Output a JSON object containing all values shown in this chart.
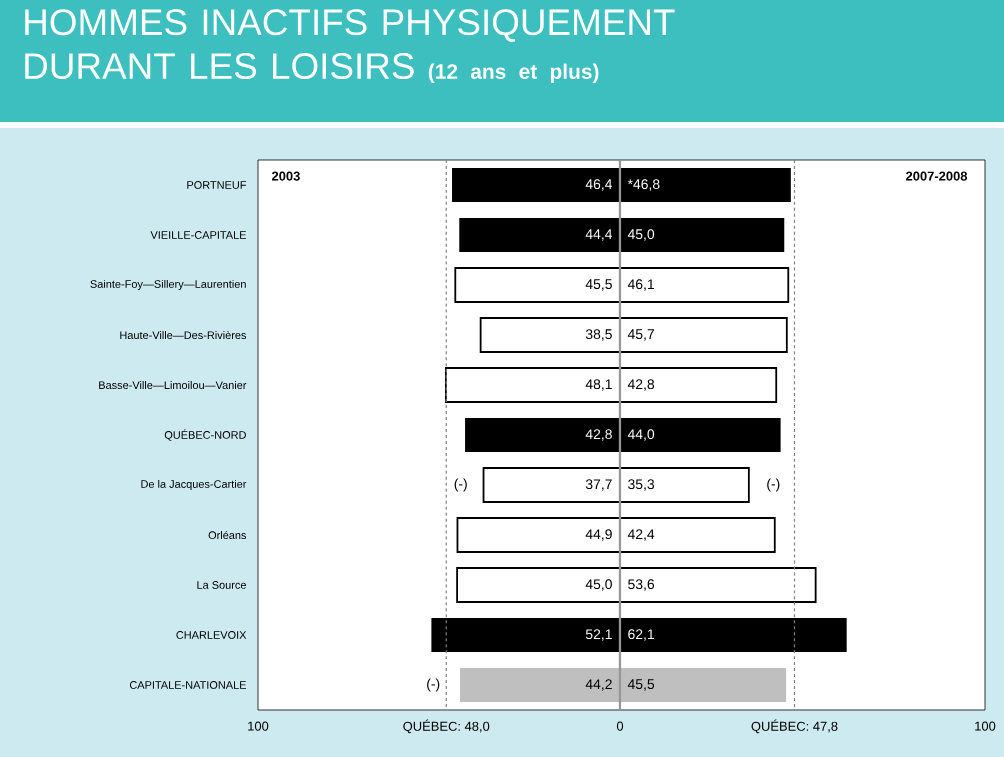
{
  "chart_data": [
    {
      "type": "other",
      "title": "HOMMES INACTIFS PHYSIQUEMENT DURANT LES LOISIRS",
      "subtitle": "(12 ans et plus)"
    },
    {
      "type": "bar",
      "orientation": "horizontal",
      "title": "2003",
      "categories": [
        "PORTNEUF",
        "VIEILLE-CAPITALE",
        "Sainte-Foy—Sillery—Laurentien",
        "Haute-Ville—Des-Rivières",
        "Basse-Ville—Limoilou—Vanier",
        "QUÉBEC-NORD",
        "De la Jacques-Cartier",
        "Orléans",
        "La Source",
        "CHARLEVOIX",
        "CAPITALE-NATIONALE"
      ],
      "values": [
        46.4,
        44.4,
        45.5,
        38.5,
        48.1,
        42.8,
        37.7,
        44.9,
        45.0,
        52.1,
        44.2
      ],
      "value_labels": [
        "46,4",
        "44,4",
        "45,5",
        "38,5",
        "48,1",
        "42,8",
        "37,7",
        "44,9",
        "45,0",
        "52,1",
        "44,2"
      ],
      "colors": [
        "#000000",
        "#000000",
        "#ffffff",
        "#ffffff",
        "#ffffff",
        "#000000",
        "#ffffff",
        "#ffffff",
        "#ffffff",
        "#000000",
        "#bfbfbf"
      ],
      "xlim": [
        100,
        0
      ],
      "xticks": [
        100,
        0
      ],
      "ref_lines": [
        {
          "axis": "x",
          "value": 48.0,
          "label": "QUÉBEC: 48,0",
          "color": "#808080",
          "line_style": "dashed"
        }
      ],
      "annotations": [
        "(-)",
        "(-)"
      ]
    },
    {
      "type": "bar",
      "orientation": "horizontal",
      "title": "2007-2008",
      "tick_labels": "x",
      "categories": [
        null,
        null,
        null,
        null,
        null,
        null,
        null,
        null,
        null,
        null,
        null
      ],
      "values": [
        46.8,
        45.0,
        46.1,
        45.7,
        42.8,
        44.0,
        35.3,
        42.4,
        53.6,
        62.1,
        45.5
      ],
      "value_labels": [
        "*46,8",
        "45,0",
        "46,1",
        "45,7",
        "42,8",
        "44,0",
        "35,3",
        "42,4",
        "53,6",
        "62,1",
        "45,5"
      ],
      "colors": [
        "#000000",
        "#000000",
        "#ffffff",
        "#ffffff",
        "#ffffff",
        "#000000",
        "#ffffff",
        "#ffffff",
        "#ffffff",
        "#000000",
        "#bfbfbf"
      ],
      "xlim": [
        0,
        100
      ],
      "xticks": [
        100
      ],
      "ref_lines": [
        {
          "axis": "x",
          "value": 47.8,
          "label": "QUÉBEC: 47,8",
          "color": "#808080",
          "line_style": "dashed"
        }
      ],
      "annotations": [
        "(-)"
      ]
    }
  ]
}
